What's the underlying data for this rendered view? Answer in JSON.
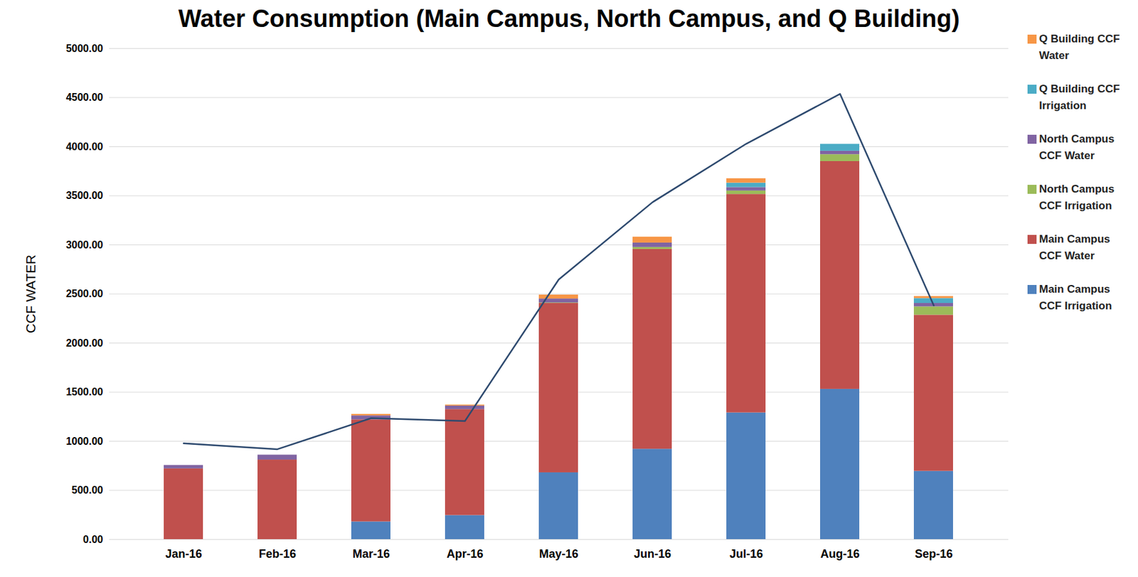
{
  "chart_data": {
    "type": "bar",
    "stacked": true,
    "title": "Water Consumption (Main Campus, North Campus, and Q Building)",
    "y_label": "CCF WATER",
    "categories": [
      "Jan-16",
      "Feb-16",
      "Mar-16",
      "Apr-16",
      "May-16",
      "Jun-16",
      "Jul-16",
      "Aug-16",
      "Sep-16"
    ],
    "series": [
      {
        "name": "Main Campus CCF Irrigation",
        "color": "#4f81bd",
        "values": [
          0,
          0,
          180,
          245,
          680,
          920,
          1290,
          1530,
          695
        ]
      },
      {
        "name": "Main Campus CCF Water",
        "color": "#c0504d",
        "values": [
          720,
          810,
          1040,
          1080,
          1725,
          2035,
          2225,
          2320,
          1590
        ]
      },
      {
        "name": "North Campus CCF Irrigation",
        "color": "#9bbb59",
        "values": [
          0,
          0,
          0,
          0,
          5,
          20,
          35,
          70,
          85
        ]
      },
      {
        "name": "North Campus CCF Water",
        "color": "#8064a2",
        "values": [
          35,
          50,
          40,
          35,
          40,
          45,
          35,
          35,
          35
        ]
      },
      {
        "name": "Q Building CCF Irrigation",
        "color": "#4bacc6",
        "values": [
          0,
          0,
          0,
          0,
          0,
          0,
          45,
          70,
          50
        ]
      },
      {
        "name": "Q Building CCF Water",
        "color": "#f79646",
        "values": [
          0,
          0,
          15,
          10,
          40,
          60,
          45,
          0,
          20
        ]
      },
      {
        "type": "line",
        "color": "#2e4a6f",
        "values": [
          978,
          919,
          1235,
          1206,
          2647,
          3434,
          4029,
          4537,
          2382
        ]
      }
    ],
    "ylim": [
      0,
      5000
    ],
    "yticks": [
      {
        "value": 0,
        "label": "0.00"
      },
      {
        "value": 500,
        "label": "500.00"
      },
      {
        "value": 1000,
        "label": "1000.00"
      },
      {
        "value": 1500,
        "label": "1500.00"
      },
      {
        "value": 2000,
        "label": "2000.00"
      },
      {
        "value": 2500,
        "label": "2500.00"
      },
      {
        "value": 3000,
        "label": "3000.00"
      },
      {
        "value": 3500,
        "label": "3500.00"
      },
      {
        "value": 4000,
        "label": "4000.00"
      },
      {
        "value": 4500,
        "label": "4500.00"
      },
      {
        "value": 5000,
        "label": "5000.00"
      }
    ],
    "grid": true,
    "legend": "right"
  }
}
